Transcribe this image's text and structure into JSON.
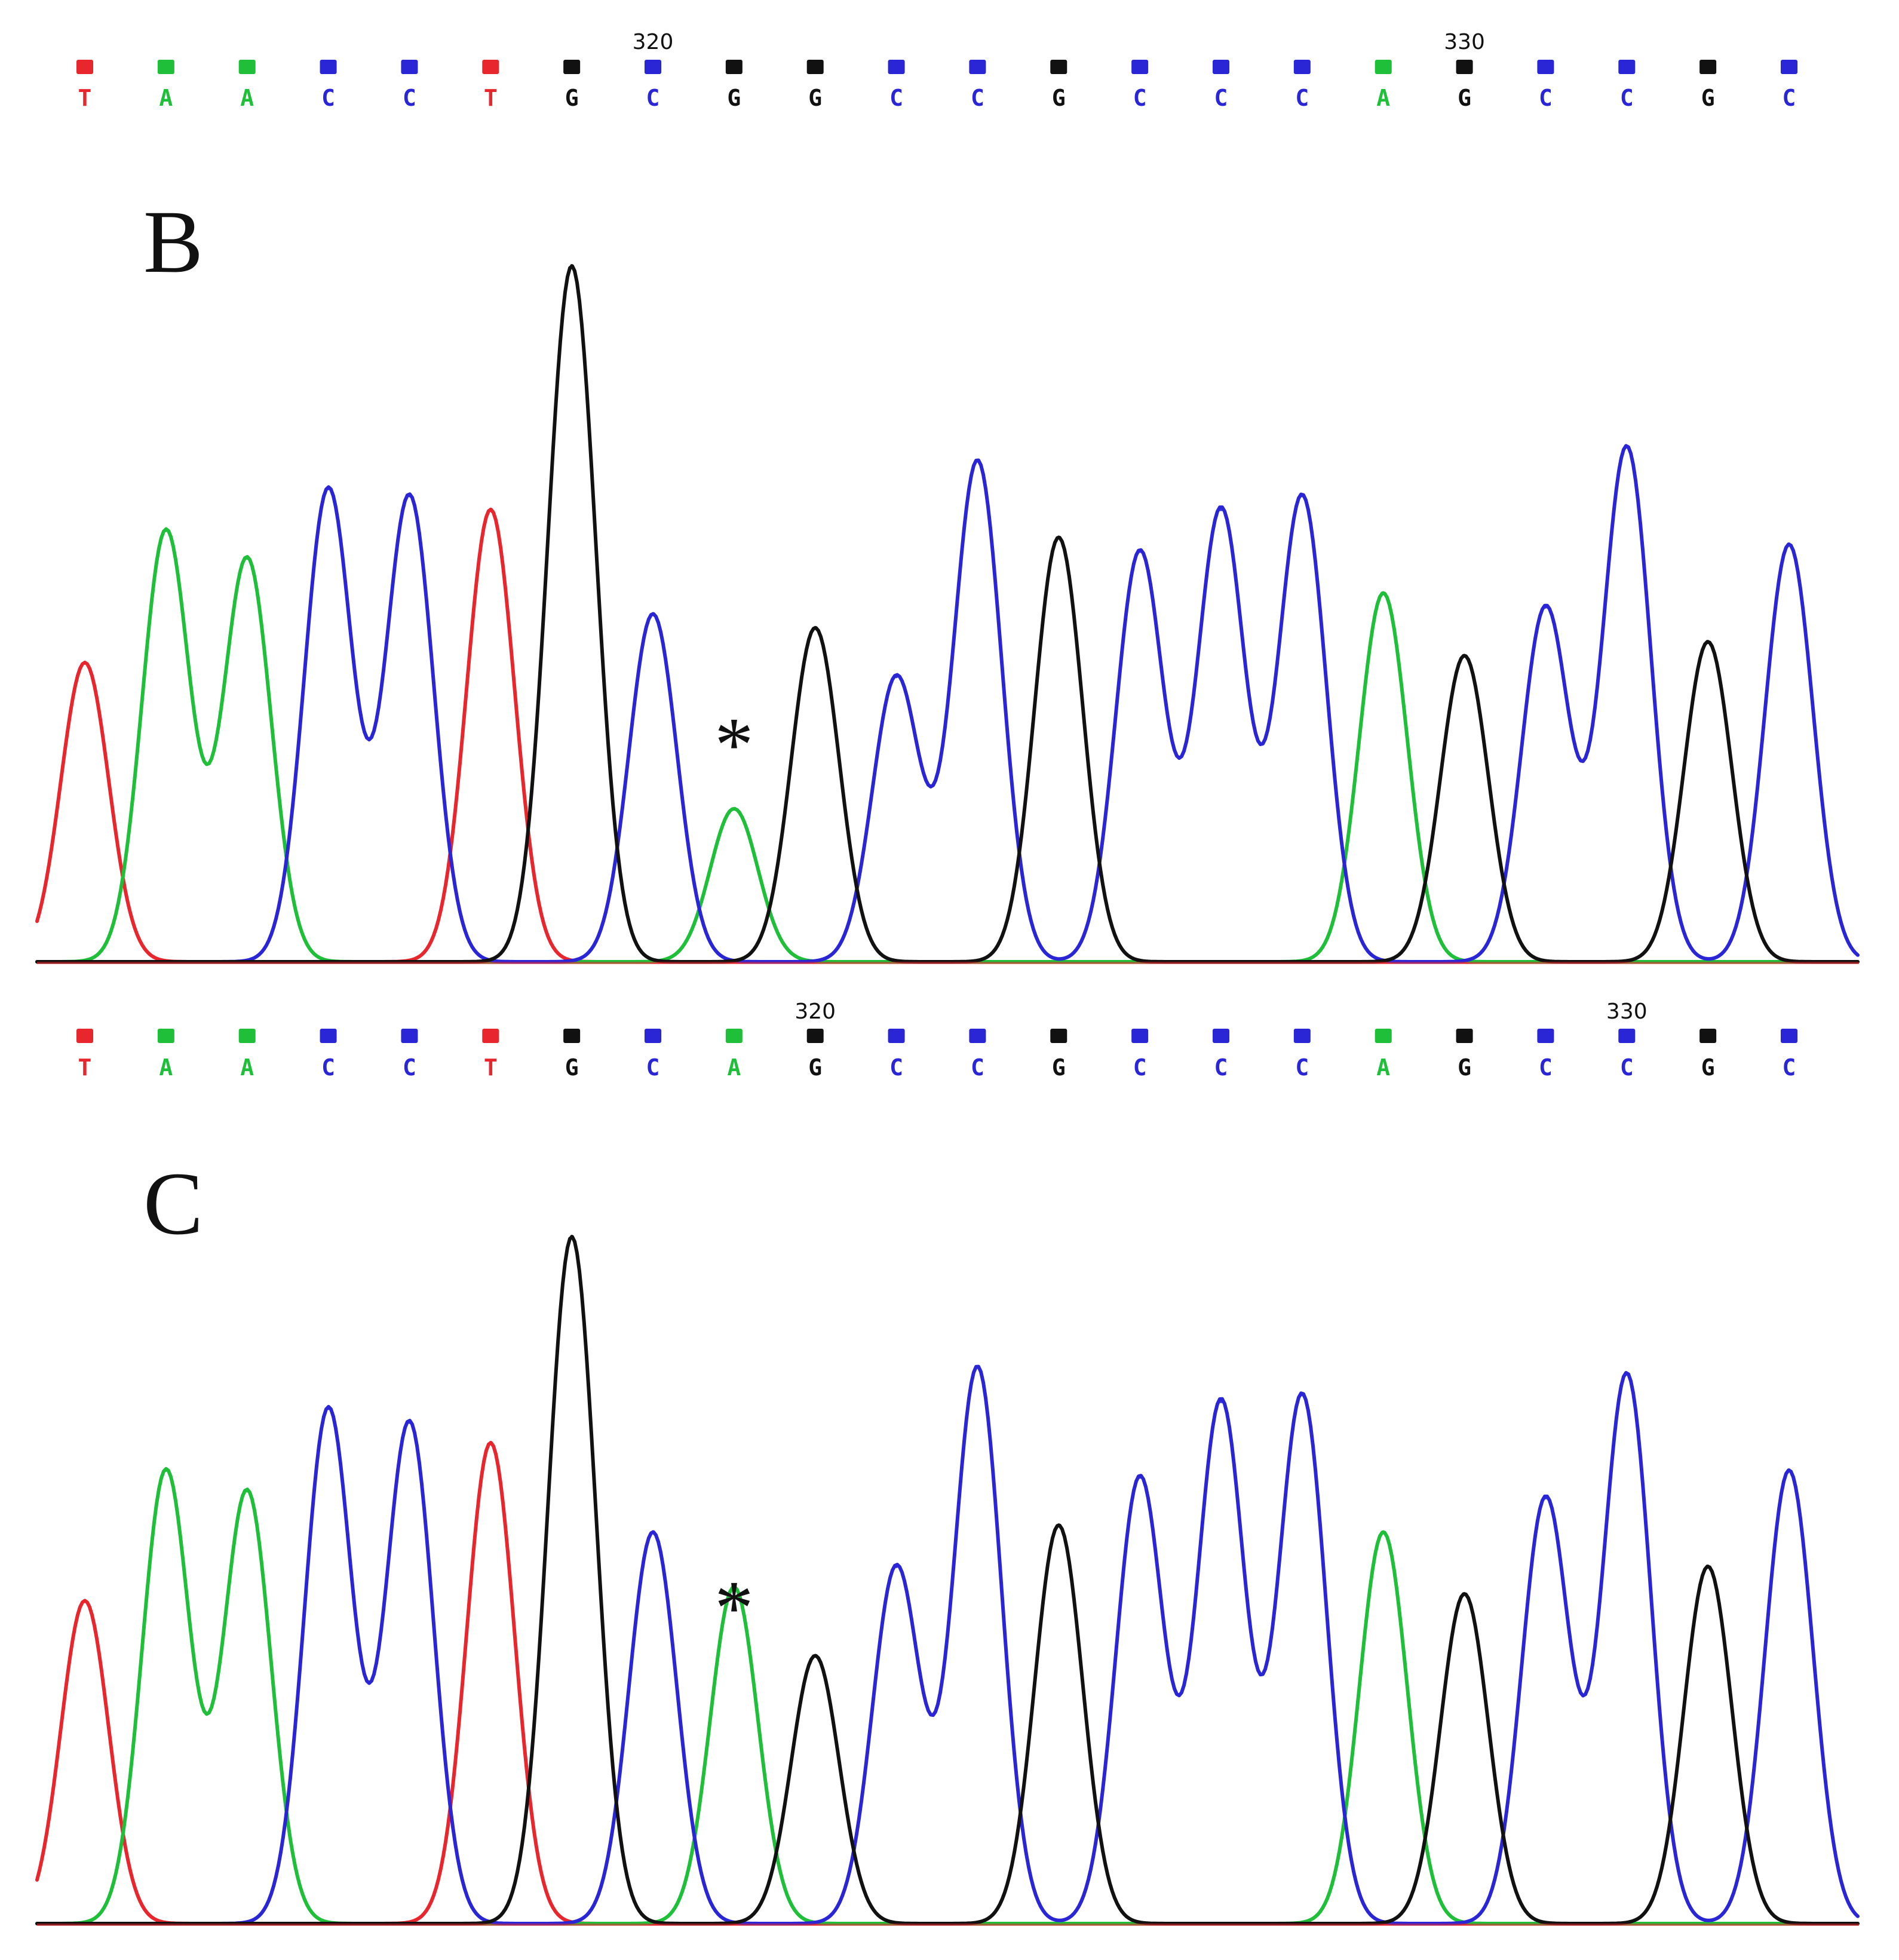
{
  "colors": {
    "A": "#1fbf3a",
    "C": "#2a26d6",
    "G": "#111111",
    "T": "#e8262e"
  },
  "chart_data": [
    {
      "type": "line",
      "panel": "B",
      "marker": "*",
      "marker_index": 8,
      "position_labels": [
        {
          "index": 7,
          "text": "320"
        },
        {
          "index": 17,
          "text": "330"
        }
      ],
      "bases": [
        "T",
        "A",
        "A",
        "C",
        "C",
        "T",
        "G",
        "C",
        "G",
        "G",
        "C",
        "C",
        "G",
        "C",
        "C",
        "C",
        "A",
        "G",
        "C",
        "C",
        "G",
        "C"
      ],
      "peaks": [
        {
          "base": "T",
          "height": 0.43
        },
        {
          "base": "A",
          "height": 0.62
        },
        {
          "base": "A",
          "height": 0.58
        },
        {
          "base": "C",
          "height": 0.68
        },
        {
          "base": "C",
          "height": 0.67
        },
        {
          "base": "T",
          "height": 0.65
        },
        {
          "base": "G",
          "height": 1.0
        },
        {
          "base": "C",
          "height": 0.5
        },
        {
          "base": "A",
          "height": 0.22
        },
        {
          "base": "G",
          "height": 0.48
        },
        {
          "base": "C",
          "height": 0.41
        },
        {
          "base": "C",
          "height": 0.72
        },
        {
          "base": "G",
          "height": 0.61
        },
        {
          "base": "C",
          "height": 0.59
        },
        {
          "base": "C",
          "height": 0.65
        },
        {
          "base": "C",
          "height": 0.67
        },
        {
          "base": "A",
          "height": 0.53
        },
        {
          "base": "G",
          "height": 0.44
        },
        {
          "base": "C",
          "height": 0.51
        },
        {
          "base": "C",
          "height": 0.74
        },
        {
          "base": "G",
          "height": 0.46
        },
        {
          "base": "C",
          "height": 0.6
        }
      ]
    },
    {
      "type": "line",
      "panel": "C",
      "marker": "*",
      "marker_index": 8,
      "position_labels": [
        {
          "index": 9,
          "text": "320"
        },
        {
          "index": 19,
          "text": "330"
        }
      ],
      "bases": [
        "T",
        "A",
        "A",
        "C",
        "C",
        "T",
        "G",
        "C",
        "A",
        "G",
        "C",
        "C",
        "G",
        "C",
        "C",
        "C",
        "A",
        "G",
        "C",
        "C",
        "G",
        "C"
      ],
      "peaks": [
        {
          "base": "T",
          "height": 0.47
        },
        {
          "base": "A",
          "height": 0.66
        },
        {
          "base": "A",
          "height": 0.63
        },
        {
          "base": "C",
          "height": 0.75
        },
        {
          "base": "C",
          "height": 0.73
        },
        {
          "base": "T",
          "height": 0.7
        },
        {
          "base": "G",
          "height": 1.0
        },
        {
          "base": "C",
          "height": 0.57
        },
        {
          "base": "A",
          "height": 0.49
        },
        {
          "base": "G",
          "height": 0.39
        },
        {
          "base": "C",
          "height": 0.52
        },
        {
          "base": "C",
          "height": 0.81
        },
        {
          "base": "G",
          "height": 0.58
        },
        {
          "base": "C",
          "height": 0.65
        },
        {
          "base": "C",
          "height": 0.76
        },
        {
          "base": "C",
          "height": 0.77
        },
        {
          "base": "A",
          "height": 0.57
        },
        {
          "base": "G",
          "height": 0.48
        },
        {
          "base": "C",
          "height": 0.62
        },
        {
          "base": "C",
          "height": 0.8
        },
        {
          "base": "G",
          "height": 0.52
        },
        {
          "base": "C",
          "height": 0.66
        }
      ]
    }
  ]
}
